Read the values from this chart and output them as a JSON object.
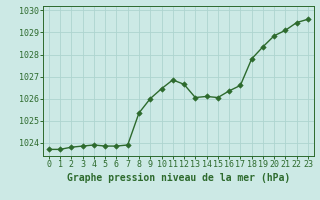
{
  "x": [
    0,
    1,
    2,
    3,
    4,
    5,
    6,
    7,
    8,
    9,
    10,
    11,
    12,
    13,
    14,
    15,
    16,
    17,
    18,
    19,
    20,
    21,
    22,
    23
  ],
  "y": [
    1023.7,
    1023.7,
    1023.8,
    1023.85,
    1023.9,
    1023.85,
    1023.85,
    1023.9,
    1025.35,
    1026.0,
    1026.45,
    1026.85,
    1026.65,
    1026.05,
    1026.1,
    1026.05,
    1026.35,
    1026.6,
    1027.8,
    1028.35,
    1028.85,
    1029.1,
    1029.45,
    1029.6
  ],
  "line_color": "#2d6a2d",
  "marker_color": "#2d6a2d",
  "bg_color": "#cce9e5",
  "grid_color": "#aed4cf",
  "xlabel": "Graphe pression niveau de la mer (hPa)",
  "ylim_min": 1023.4,
  "ylim_max": 1030.2,
  "yticks": [
    1024,
    1025,
    1026,
    1027,
    1028,
    1029,
    1030
  ],
  "xticks": [
    0,
    1,
    2,
    3,
    4,
    5,
    6,
    7,
    8,
    9,
    10,
    11,
    12,
    13,
    14,
    15,
    16,
    17,
    18,
    19,
    20,
    21,
    22,
    23
  ],
  "title_fontsize": 7.0,
  "tick_fontsize": 6.0,
  "line_width": 1.0,
  "marker_size": 2.8
}
